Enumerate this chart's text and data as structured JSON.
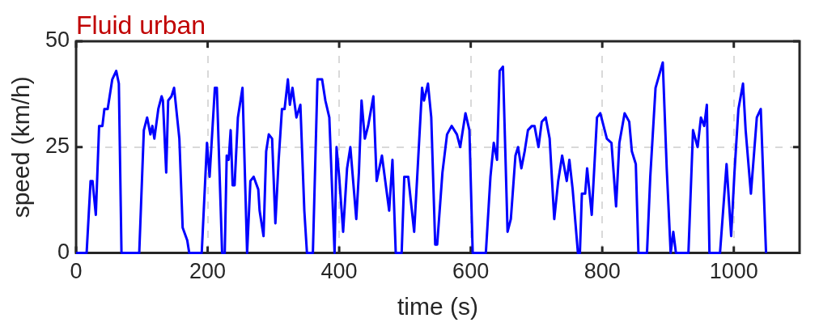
{
  "chart_data": {
    "type": "line",
    "title": "Fluid urban",
    "xlabel": "time (s)",
    "ylabel": "speed (km/h)",
    "xlim": [
      0,
      1100
    ],
    "xticks": [
      0,
      200,
      400,
      600,
      800,
      1000
    ],
    "ylim": [
      0,
      50
    ],
    "yticks": [
      0,
      25,
      50
    ],
    "grid": true,
    "marker": "none",
    "line_style": "solid",
    "series": [
      {
        "color": "#0000ff",
        "x": [
          0,
          16,
          22,
          25,
          30,
          35,
          40,
          43,
          48,
          55,
          61,
          65,
          69,
          96,
          103,
          108,
          113,
          116,
          119,
          125,
          130,
          132,
          137,
          140,
          145,
          149,
          157,
          162,
          169,
          172,
          191,
          199,
          203,
          211,
          214,
          222,
          226,
          229,
          232,
          235,
          238,
          241,
          246,
          253,
          260,
          265,
          270,
          277,
          279,
          285,
          289,
          293,
          298,
          303,
          308,
          313,
          317,
          322,
          325,
          329,
          335,
          341,
          347,
          351,
          360,
          367,
          374,
          379,
          385,
          393,
          396,
          400,
          406,
          412,
          417,
          426,
          430,
          434,
          439,
          444,
          452,
          457,
          465,
          476,
          481,
          486,
          495,
          499,
          505,
          514,
          519,
          526,
          529,
          535,
          540,
          546,
          549,
          557,
          564,
          571,
          579,
          584,
          592,
          598,
          603,
          623,
          630,
          635,
          640,
          644,
          649,
          656,
          661,
          668,
          672,
          677,
          682,
          687,
          693,
          697,
          703,
          708,
          714,
          720,
          727,
          733,
          739,
          746,
          750,
          755,
          763,
          766,
          769,
          774,
          777,
          784,
          792,
          797,
          807,
          814,
          821,
          826,
          834,
          841,
          845,
          851,
          855,
          868,
          873,
          881,
          892,
          898,
          904,
          908,
          912,
          931,
          938,
          945,
          950,
          955,
          959,
          963,
          979,
          989,
          996,
          1001,
          1007,
          1014,
          1018,
          1026,
          1035,
          1041,
          1049
        ],
        "values": [
          0,
          0,
          17,
          17,
          9,
          30,
          30,
          34,
          34,
          41,
          43,
          40,
          0,
          0,
          29,
          32,
          28,
          30,
          27,
          34,
          37,
          36,
          19,
          36,
          37,
          39,
          27,
          6,
          3,
          0,
          0,
          26,
          18,
          39,
          39,
          0,
          0,
          23,
          22,
          29,
          16,
          16,
          32,
          39,
          0,
          17,
          18,
          15,
          10,
          4,
          24,
          28,
          27,
          7,
          22,
          34,
          34,
          41,
          35,
          39,
          32,
          35,
          10,
          0,
          0,
          41,
          41,
          36,
          32,
          0,
          25,
          18,
          5,
          20,
          25,
          8,
          19,
          36,
          27,
          30,
          37,
          17,
          23,
          10,
          22,
          0,
          0,
          18,
          18,
          5,
          19,
          39,
          36,
          40,
          32,
          2,
          2,
          19,
          28,
          30,
          28,
          25,
          33,
          29,
          0,
          0,
          18,
          26,
          22,
          43,
          44,
          5,
          8,
          23,
          25,
          20,
          24,
          29,
          30,
          30,
          25,
          31,
          32,
          27,
          8,
          17,
          23,
          17,
          22,
          15,
          0,
          0,
          14,
          14,
          20,
          9,
          32,
          33,
          27,
          26,
          11,
          26,
          33,
          31,
          24,
          21,
          0,
          0,
          18,
          39,
          45,
          20,
          0,
          5,
          0,
          0,
          29,
          25,
          32,
          30,
          35,
          0,
          0,
          21,
          4,
          19,
          34,
          40,
          29,
          14,
          32,
          34,
          0
        ]
      }
    ]
  }
}
